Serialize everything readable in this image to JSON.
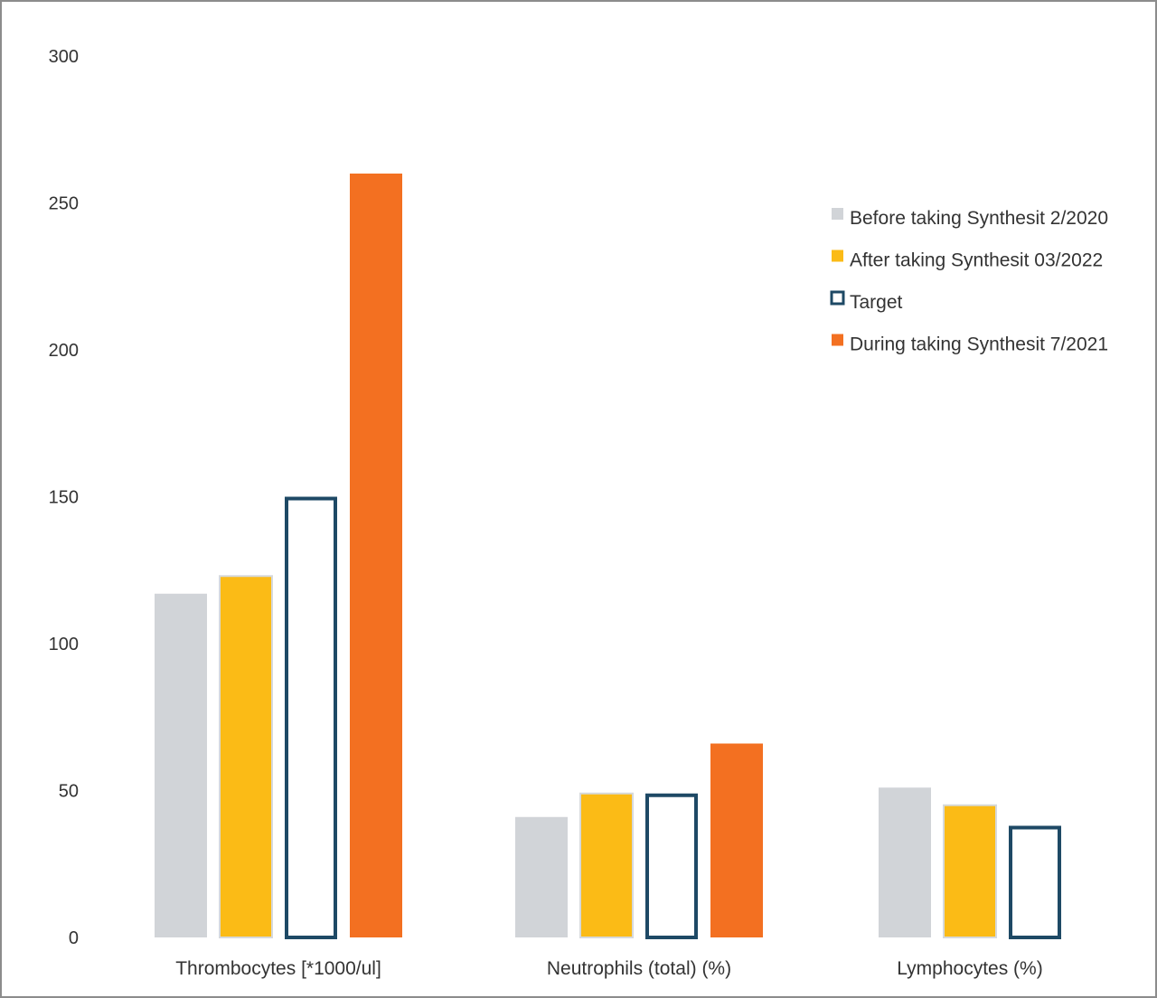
{
  "chart_data": {
    "type": "bar",
    "title": "",
    "xlabel": "",
    "ylabel": "",
    "ylim": [
      0,
      300
    ],
    "yticks": [
      0,
      50,
      100,
      150,
      200,
      250,
      300
    ],
    "grid": false,
    "legend_position": "right",
    "categories": [
      "Thrombocytes [*1000/ul]",
      "Neutrophils (total) (%)",
      "Lymphocytes (%)"
    ],
    "series": [
      {
        "name": "Before taking Synthesit 2/2020",
        "values": [
          117,
          41,
          51
        ],
        "color": "#d1d4d8",
        "style": "filled"
      },
      {
        "name": "After taking Synthesit 03/2022",
        "values": [
          123,
          49,
          45
        ],
        "color": "#fbbb16",
        "style": "filled"
      },
      {
        "name": "Target",
        "values": [
          150,
          49,
          38
        ],
        "color": "#1e4965",
        "style": "outline"
      },
      {
        "name": "During taking Synthesit 7/2021",
        "values": [
          260,
          66,
          null
        ],
        "color": "#f37021",
        "style": "filled"
      }
    ]
  }
}
